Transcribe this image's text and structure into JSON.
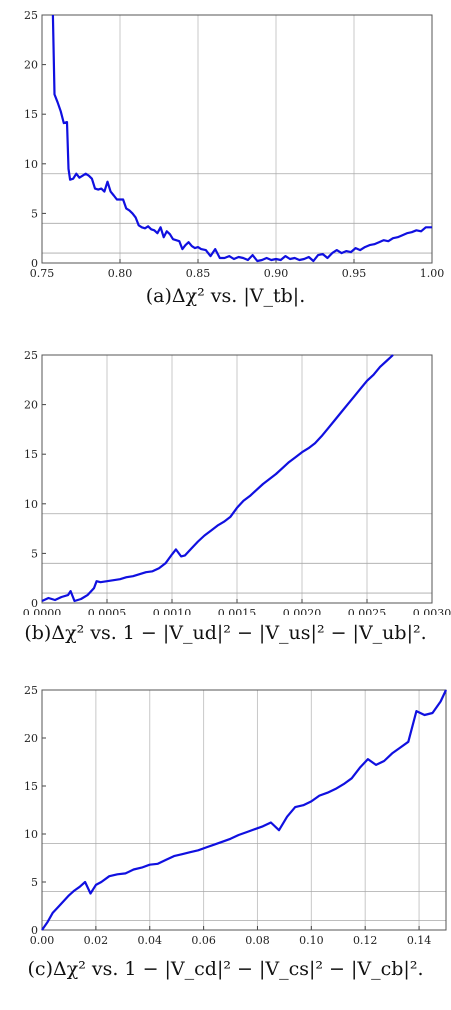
{
  "chart_data": [
    {
      "type": "line",
      "caption": "(a)Δχ² vs. |V_tb|.",
      "xlim": [
        0.75,
        1.0
      ],
      "ylim": [
        0,
        25
      ],
      "xticks": [
        0.75,
        0.8,
        0.85,
        0.9,
        0.95,
        1.0
      ],
      "xtick_labels": [
        "0.75",
        "0.80",
        "0.85",
        "0.90",
        "0.95",
        "1.00"
      ],
      "yticks": [
        0,
        5,
        10,
        15,
        20,
        25
      ],
      "ytick_labels": [
        "0",
        "5",
        "10",
        "15",
        "20",
        "25"
      ],
      "hlines": [
        1,
        4,
        9
      ],
      "grid": true,
      "line_color": "#1010e0",
      "series": [
        {
          "x": [
            0.757,
            0.758,
            0.76,
            0.762,
            0.764,
            0.766,
            0.767,
            0.768,
            0.77,
            0.772,
            0.774,
            0.776,
            0.778,
            0.78,
            0.782,
            0.784,
            0.786,
            0.788,
            0.79,
            0.792,
            0.794,
            0.796,
            0.798,
            0.8,
            0.802,
            0.804,
            0.806,
            0.808,
            0.81,
            0.812,
            0.814,
            0.816,
            0.818,
            0.82,
            0.822,
            0.824,
            0.826,
            0.828,
            0.83,
            0.832,
            0.834,
            0.836,
            0.838,
            0.84,
            0.842,
            0.844,
            0.846,
            0.848,
            0.85,
            0.852,
            0.855,
            0.858,
            0.861,
            0.864,
            0.867,
            0.87,
            0.873,
            0.876,
            0.879,
            0.882,
            0.885,
            0.888,
            0.891,
            0.894,
            0.897,
            0.9,
            0.903,
            0.906,
            0.909,
            0.912,
            0.915,
            0.918,
            0.921,
            0.924,
            0.927,
            0.93,
            0.933,
            0.936,
            0.939,
            0.942,
            0.945,
            0.948,
            0.951,
            0.954,
            0.957,
            0.96,
            0.963,
            0.966,
            0.969,
            0.972,
            0.975,
            0.978,
            0.981,
            0.984,
            0.987,
            0.99,
            0.993,
            0.996,
            1.0
          ],
          "y": [
            25,
            17,
            16.2,
            15.3,
            14.1,
            14.2,
            9.5,
            8.4,
            8.5,
            9.0,
            8.6,
            8.8,
            9.0,
            8.8,
            8.5,
            7.5,
            7.4,
            7.5,
            7.2,
            8.2,
            7.2,
            6.8,
            6.4,
            6.4,
            6.4,
            5.5,
            5.3,
            5.0,
            4.6,
            3.8,
            3.6,
            3.5,
            3.7,
            3.4,
            3.3,
            3.0,
            3.6,
            2.6,
            3.2,
            2.9,
            2.4,
            2.3,
            2.2,
            1.4,
            1.8,
            2.1,
            1.7,
            1.5,
            1.6,
            1.4,
            1.3,
            0.7,
            1.4,
            0.5,
            0.5,
            0.7,
            0.4,
            0.6,
            0.5,
            0.3,
            0.8,
            0.2,
            0.3,
            0.5,
            0.3,
            0.4,
            0.3,
            0.7,
            0.4,
            0.5,
            0.3,
            0.4,
            0.6,
            0.2,
            0.8,
            0.9,
            0.5,
            1.0,
            1.3,
            1.0,
            1.2,
            1.1,
            1.5,
            1.3,
            1.6,
            1.8,
            1.9,
            2.1,
            2.3,
            2.2,
            2.5,
            2.6,
            2.8,
            3.0,
            3.1,
            3.3,
            3.2,
            3.6,
            3.6
          ]
        }
      ]
    },
    {
      "type": "line",
      "caption": "(b)Δχ² vs. 1 − |V_ud|² − |V_us|² − |V_ub|².",
      "xlim": [
        0,
        0.003
      ],
      "ylim": [
        0,
        25
      ],
      "xticks": [
        0,
        0.0005,
        0.001,
        0.0015,
        0.002,
        0.0025,
        0.003
      ],
      "xtick_labels": [
        "0.0000",
        "0.0005",
        "0.0010",
        "0.0015",
        "0.0020",
        "0.0025",
        "0.0030"
      ],
      "yticks": [
        0,
        5,
        10,
        15,
        20,
        25
      ],
      "ytick_labels": [
        "0",
        "5",
        "10",
        "15",
        "20",
        "25"
      ],
      "hlines": [
        1,
        4,
        9
      ],
      "grid": true,
      "line_color": "#1010e0",
      "series": [
        {
          "x": [
            0,
            5e-05,
            0.0001,
            0.00015,
            0.0002,
            0.00022,
            0.00025,
            0.0003,
            0.00035,
            0.0004,
            0.00042,
            0.00045,
            0.0005,
            0.00055,
            0.0006,
            0.00065,
            0.0007,
            0.00075,
            0.0008,
            0.00085,
            0.0009,
            0.00095,
            0.001,
            0.00103,
            0.00107,
            0.0011,
            0.00115,
            0.0012,
            0.00125,
            0.0013,
            0.00135,
            0.0014,
            0.00145,
            0.0015,
            0.00155,
            0.0016,
            0.00165,
            0.0017,
            0.00175,
            0.0018,
            0.00185,
            0.0019,
            0.00195,
            0.002,
            0.00205,
            0.0021,
            0.00215,
            0.0022,
            0.00225,
            0.0023,
            0.00235,
            0.0024,
            0.00245,
            0.0025,
            0.00255,
            0.0026,
            0.00265,
            0.0027
          ],
          "y": [
            0.2,
            0.5,
            0.3,
            0.6,
            0.8,
            1.2,
            0.2,
            0.4,
            0.8,
            1.5,
            2.2,
            2.1,
            2.2,
            2.3,
            2.4,
            2.6,
            2.7,
            2.9,
            3.1,
            3.2,
            3.5,
            4.0,
            4.9,
            5.4,
            4.7,
            4.8,
            5.5,
            6.2,
            6.8,
            7.3,
            7.8,
            8.2,
            8.7,
            9.6,
            10.3,
            10.8,
            11.4,
            12.0,
            12.5,
            13.0,
            13.6,
            14.2,
            14.7,
            15.2,
            15.6,
            16.1,
            16.8,
            17.6,
            18.4,
            19.2,
            20.0,
            20.8,
            21.6,
            22.4,
            23.0,
            23.8,
            24.4,
            25
          ]
        }
      ]
    },
    {
      "type": "line",
      "caption": "(c)Δχ² vs. 1 − |V_cd|² − |V_cs|² − |V_cb|².",
      "xlim": [
        0,
        0.15
      ],
      "ylim": [
        0,
        25
      ],
      "xticks": [
        0,
        0.02,
        0.04,
        0.06,
        0.08,
        0.1,
        0.12,
        0.14
      ],
      "xtick_labels": [
        "0.00",
        "0.02",
        "0.04",
        "0.06",
        "0.08",
        "0.10",
        "0.12",
        "0.14"
      ],
      "yticks": [
        0,
        5,
        10,
        15,
        20,
        25
      ],
      "ytick_labels": [
        "0",
        "5",
        "10",
        "15",
        "20",
        "25"
      ],
      "hlines": [
        1,
        4,
        9
      ],
      "grid": true,
      "line_color": "#1010e0",
      "series": [
        {
          "x": [
            0,
            0.002,
            0.004,
            0.006,
            0.008,
            0.01,
            0.012,
            0.014,
            0.016,
            0.018,
            0.02,
            0.022,
            0.025,
            0.028,
            0.031,
            0.034,
            0.037,
            0.04,
            0.043,
            0.046,
            0.049,
            0.052,
            0.055,
            0.058,
            0.061,
            0.064,
            0.067,
            0.07,
            0.073,
            0.076,
            0.079,
            0.082,
            0.085,
            0.088,
            0.091,
            0.094,
            0.097,
            0.1,
            0.103,
            0.106,
            0.109,
            0.112,
            0.115,
            0.118,
            0.121,
            0.124,
            0.127,
            0.13,
            0.133,
            0.136,
            0.139,
            0.142,
            0.145,
            0.148,
            0.15
          ],
          "y": [
            0,
            0.8,
            1.8,
            2.4,
            3.0,
            3.6,
            4.1,
            4.5,
            5.0,
            3.8,
            4.7,
            5.0,
            5.6,
            5.8,
            5.9,
            6.3,
            6.5,
            6.8,
            6.9,
            7.3,
            7.7,
            7.9,
            8.1,
            8.3,
            8.6,
            8.9,
            9.2,
            9.5,
            9.9,
            10.2,
            10.5,
            10.8,
            11.2,
            10.4,
            11.8,
            12.8,
            13.0,
            13.4,
            14.0,
            14.3,
            14.7,
            15.2,
            15.8,
            16.9,
            17.8,
            17.2,
            17.6,
            18.4,
            19.0,
            19.6,
            22.8,
            22.4,
            22.6,
            23.8,
            25
          ]
        }
      ]
    }
  ]
}
